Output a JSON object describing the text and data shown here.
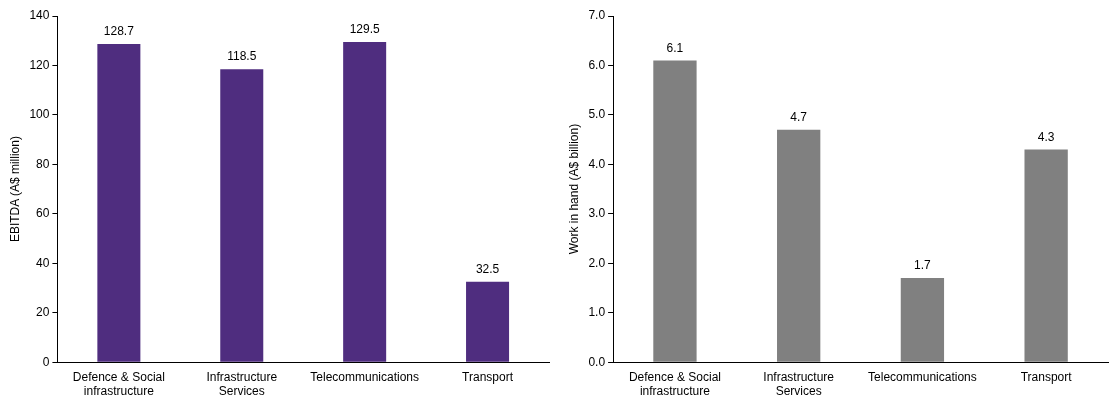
{
  "chart_data": [
    {
      "type": "bar",
      "ylabel": "EBITDA (A$ million)",
      "categories": [
        "Defence & Social infrastructure",
        "Infrastructure Services",
        "Telecommunications",
        "Transport"
      ],
      "values": [
        128.7,
        118.5,
        129.5,
        32.5
      ],
      "color": "#4f2d7f",
      "ylim": [
        0,
        140
      ],
      "yticks": [
        0,
        20,
        40,
        60,
        80,
        100,
        120,
        140
      ],
      "grid": false,
      "legend": false,
      "data_labels": true
    },
    {
      "type": "bar",
      "ylabel": "Work in hand (A$ billion)",
      "categories": [
        "Defence & Social infrastructure",
        "Infrastructure Services",
        "Telecommunications",
        "Transport"
      ],
      "values": [
        6.1,
        4.7,
        1.7,
        4.3
      ],
      "color": "#808080",
      "ylim": [
        0,
        7
      ],
      "yticks": [
        {
          "value": 0,
          "label": "0.0"
        },
        {
          "value": 1,
          "label": "1.0"
        },
        {
          "value": 2,
          "label": "2.0"
        },
        {
          "value": 3,
          "label": "3.0"
        },
        {
          "value": 4,
          "label": "4.0"
        },
        {
          "value": 5,
          "label": "5.0"
        },
        {
          "value": 6,
          "label": "6.0"
        },
        {
          "value": 7,
          "label": "7.0"
        }
      ],
      "grid": false,
      "legend": false,
      "data_labels": true
    }
  ]
}
